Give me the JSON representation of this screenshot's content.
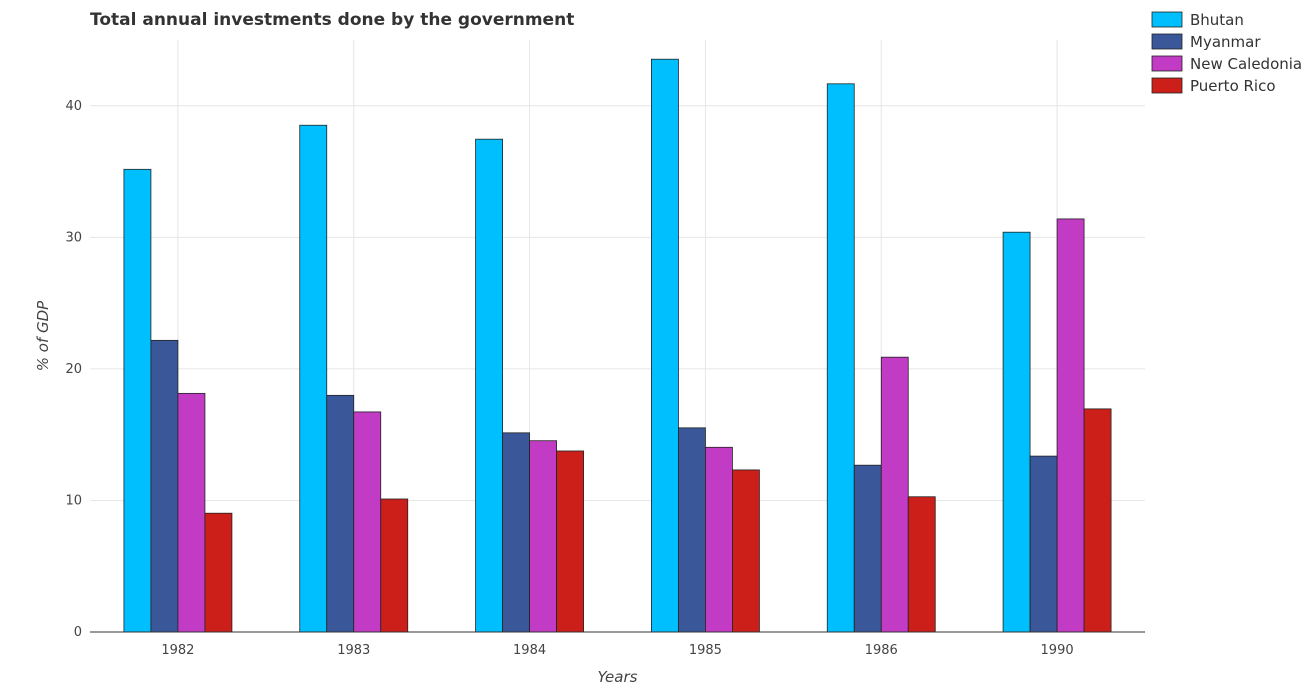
{
  "chart_data": {
    "type": "bar",
    "title": "Total annual investments done by the government",
    "xlabel": "Years",
    "ylabel": "% of GDP",
    "ylim": [
      0,
      45
    ],
    "yticks": [
      0,
      10,
      20,
      30,
      40
    ],
    "grid": true,
    "legend_position": "top-right",
    "categories": [
      "1982",
      "1983",
      "1984",
      "1985",
      "1986",
      "1990"
    ],
    "series": [
      {
        "name": "Bhutan",
        "color": "#00bfff",
        "values": [
          35.17,
          38.52,
          37.46,
          43.54,
          41.67,
          30.39
        ]
      },
      {
        "name": "Myanmar",
        "color": "#3a5899",
        "values": [
          22.17,
          17.99,
          15.14,
          15.52,
          12.68,
          13.37
        ]
      },
      {
        "name": "New Caledonia",
        "color": "#c23bc4",
        "values": [
          18.14,
          16.73,
          14.54,
          14.04,
          20.89,
          31.4
        ]
      },
      {
        "name": "Puerto Rico",
        "color": "#cc1f1a",
        "values": [
          9.03,
          10.11,
          13.76,
          12.32,
          10.28,
          16.96
        ]
      }
    ]
  }
}
